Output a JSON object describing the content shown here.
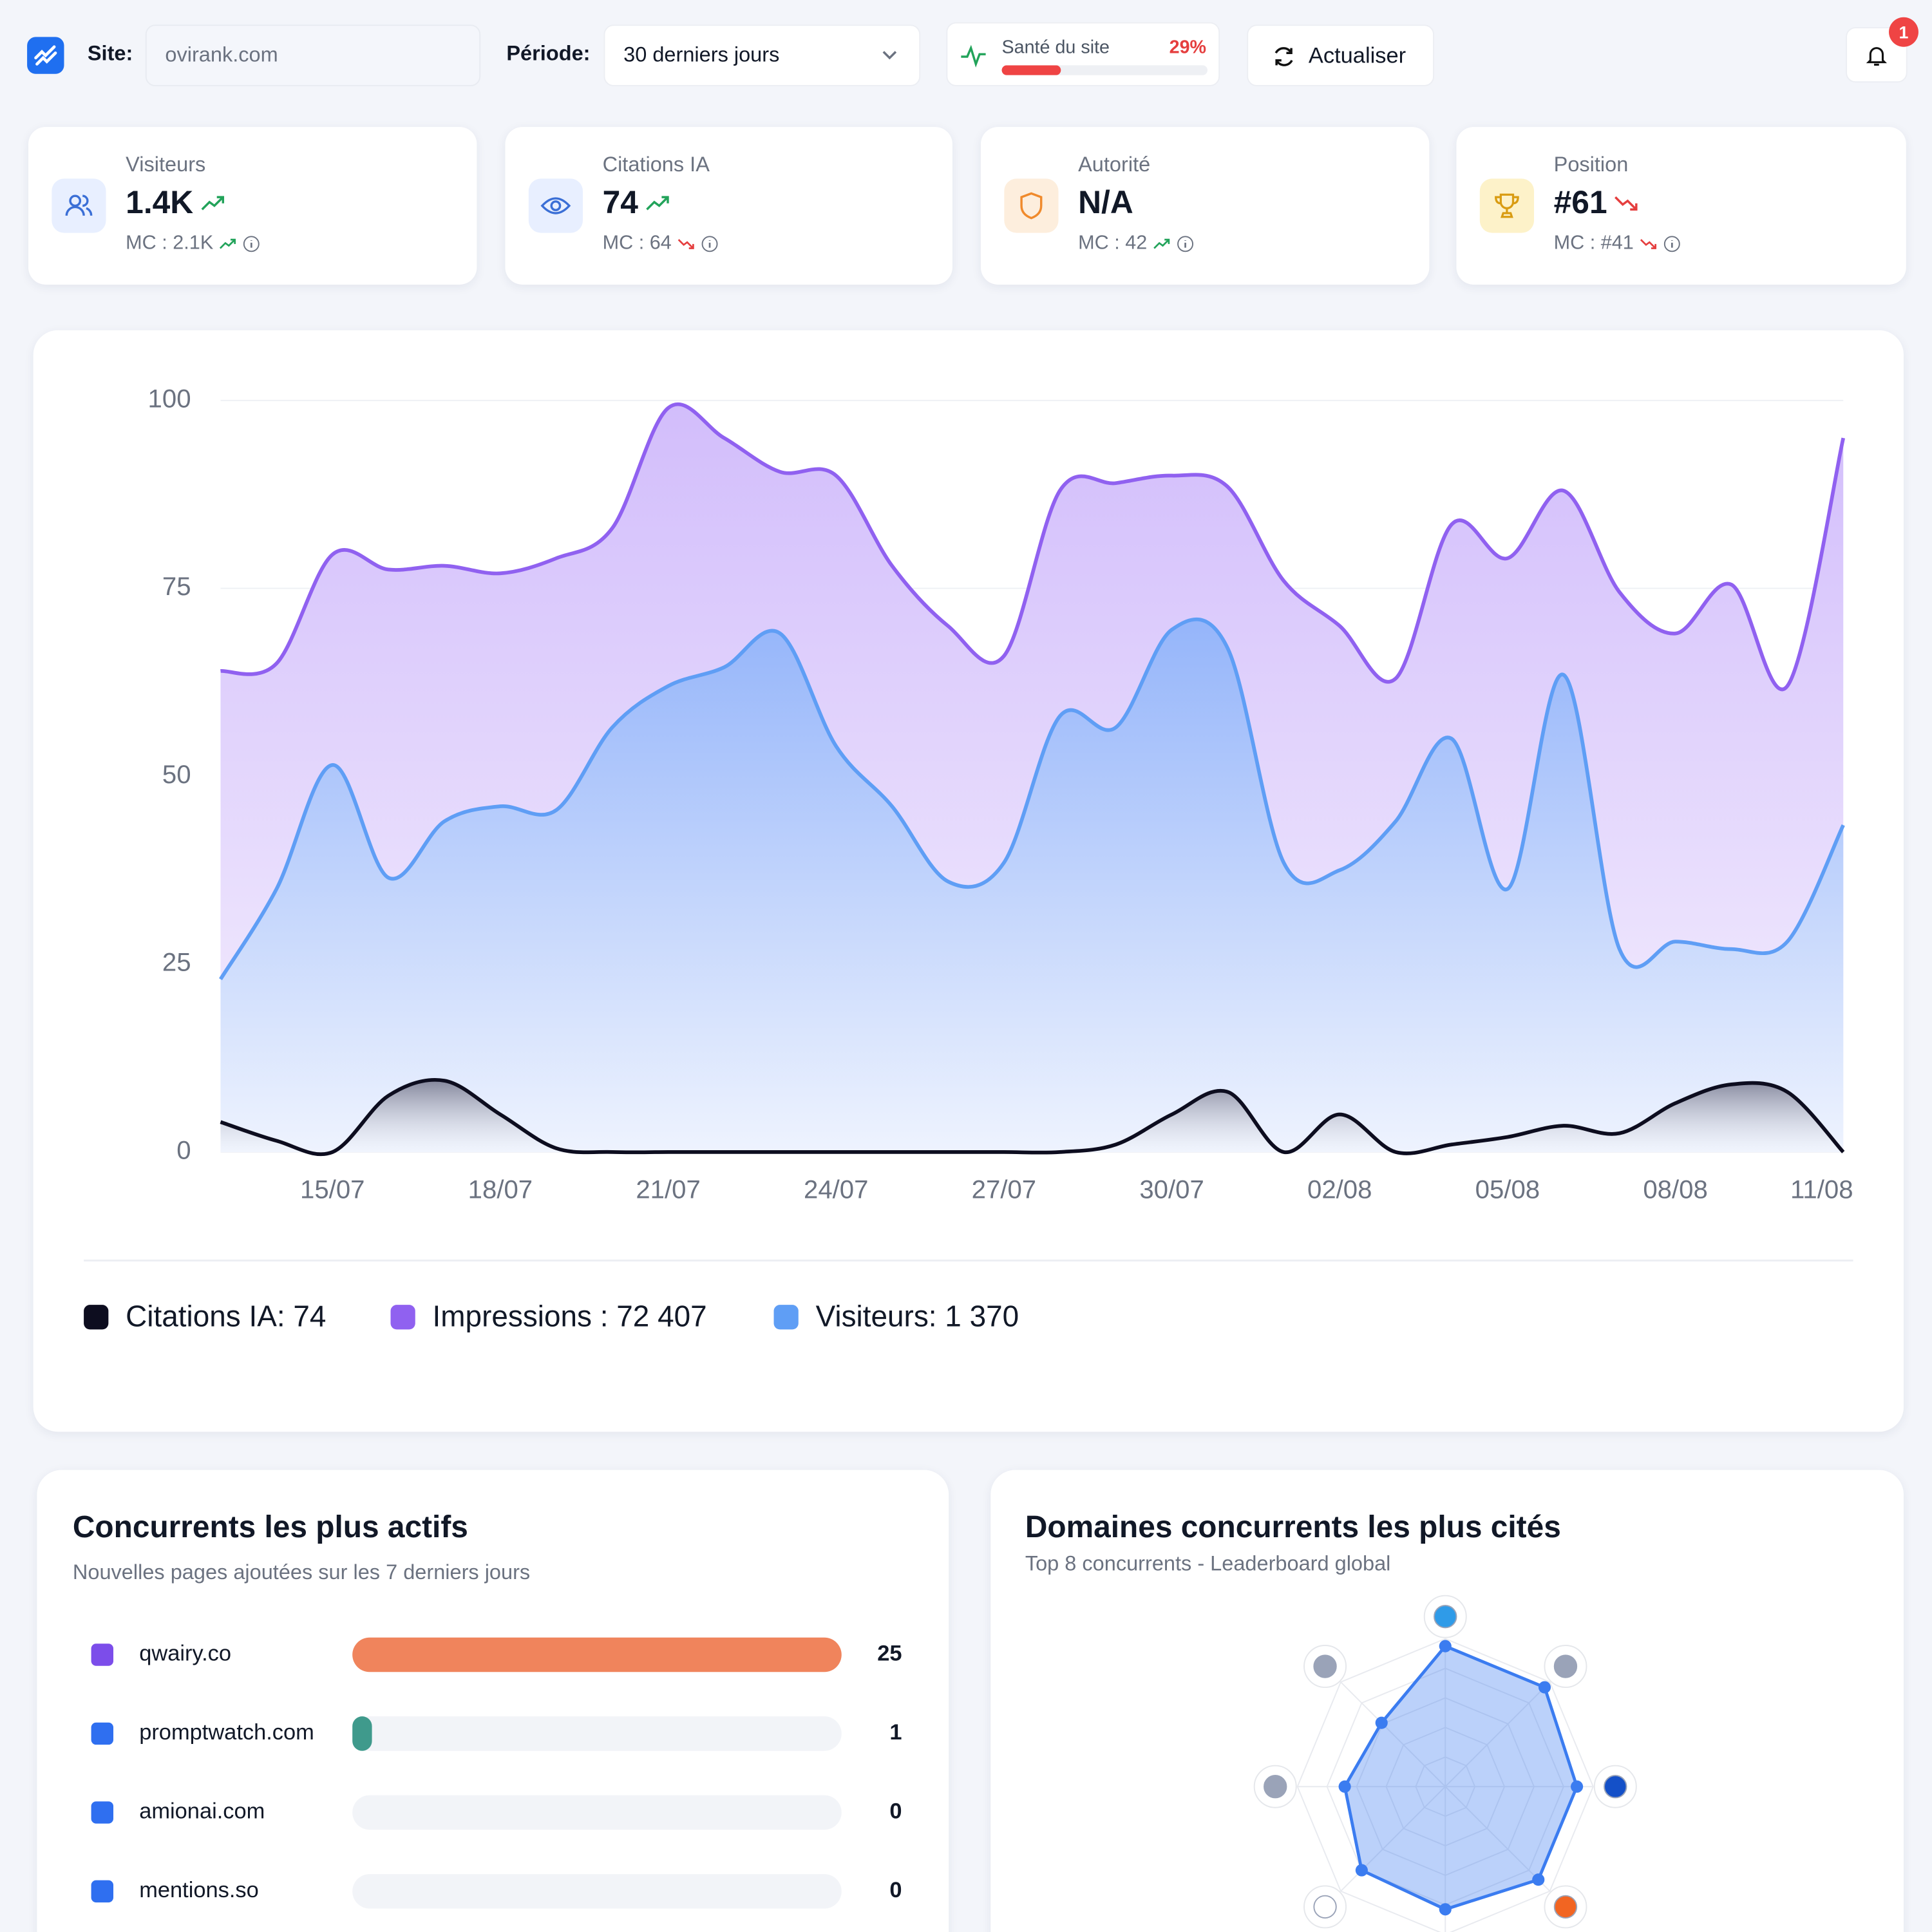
{
  "header": {
    "site_label": "Site:",
    "site_value": "ovirank.com",
    "period_label": "Période:",
    "period_value": "30 derniers jours",
    "health": {
      "label": "Santé du site",
      "value": 29,
      "value_label": "29%"
    },
    "refresh": "Actualiser",
    "notifications": 1
  },
  "kpis": [
    {
      "label": "Visiteurs",
      "value": "1.4K",
      "comparison": "MC : 2.1K"
    },
    {
      "label": "Citations IA",
      "value": "74",
      "comparison": "MC : 64"
    },
    {
      "label": "Autorité",
      "value": "N/A",
      "comparison": "MC : 42"
    },
    {
      "label": "Position",
      "value": "#61",
      "comparison": "MC : #41"
    }
  ],
  "chart_data": [
    {
      "type": "area",
      "categories": [
        null,
        null,
        "15/07",
        null,
        null,
        "18/07",
        null,
        null,
        "21/07",
        null,
        null,
        "24/07",
        null,
        null,
        "27/07",
        null,
        null,
        "30/07",
        null,
        null,
        "02/08",
        null,
        null,
        "05/08",
        null,
        null,
        "08/08",
        null,
        null,
        "11/08"
      ],
      "ylim": [
        0,
        100
      ],
      "yticks": [
        0,
        25,
        50,
        75,
        100
      ],
      "grid": true,
      "series": [
        {
          "name": "Citations IA: 74",
          "color": "#0d0d1f",
          "values": [
            4,
            1.5,
            0,
            7.5,
            9.5,
            5,
            0.5,
            0,
            0,
            0,
            0,
            0,
            0,
            0,
            0,
            0,
            1,
            5,
            8,
            0,
            5,
            0,
            1,
            2,
            3.5,
            2.5,
            6.5,
            9,
            8,
            0
          ]
        },
        {
          "name": "Impressions : 72 407",
          "color": "#9061f0",
          "values": [
            64,
            65,
            79.5,
            77.5,
            78,
            77,
            79,
            83,
            99,
            95,
            90.5,
            90,
            78,
            70,
            66,
            88,
            89,
            90,
            88.5,
            76,
            70,
            63,
            83.5,
            79,
            88,
            74.5,
            69,
            75.5,
            62,
            95
          ]
        },
        {
          "name": "Visiteurs: 1 370",
          "color": "#5f9ef5",
          "values": [
            23,
            35,
            51.5,
            36.5,
            44,
            46,
            45.5,
            56.5,
            62,
            64.5,
            69,
            54,
            46,
            36,
            38.5,
            58,
            56.5,
            69.5,
            67,
            38.5,
            37.5,
            44,
            55,
            35,
            63.5,
            27,
            28,
            27,
            28,
            43.5
          ]
        }
      ]
    },
    {
      "type": "bar",
      "title": "Concurrents les plus actifs",
      "subtitle": "Nouvelles pages ajoutées sur les 7 derniers jours",
      "categories": [
        "qwairy.co",
        "promptwatch.com",
        "amionai.com",
        "mentions.so"
      ],
      "values": [
        25,
        1,
        0,
        0
      ],
      "colors": [
        "#f0845c",
        "#3f9a8c",
        "#3f9a8c",
        "#3f9a8c"
      ],
      "xlim": [
        0,
        25
      ]
    },
    {
      "type": "radar",
      "title": "Domaines concurrents les plus cités",
      "subtitle": "Top 8 concurrents - Leaderboard global",
      "categories": [
        null,
        null,
        null,
        null,
        null,
        null,
        null,
        null
      ],
      "values": [
        95,
        95,
        89,
        89,
        83,
        80,
        68,
        61
      ],
      "rlim": [
        0,
        100
      ],
      "color": "#3b7cf0"
    }
  ]
}
